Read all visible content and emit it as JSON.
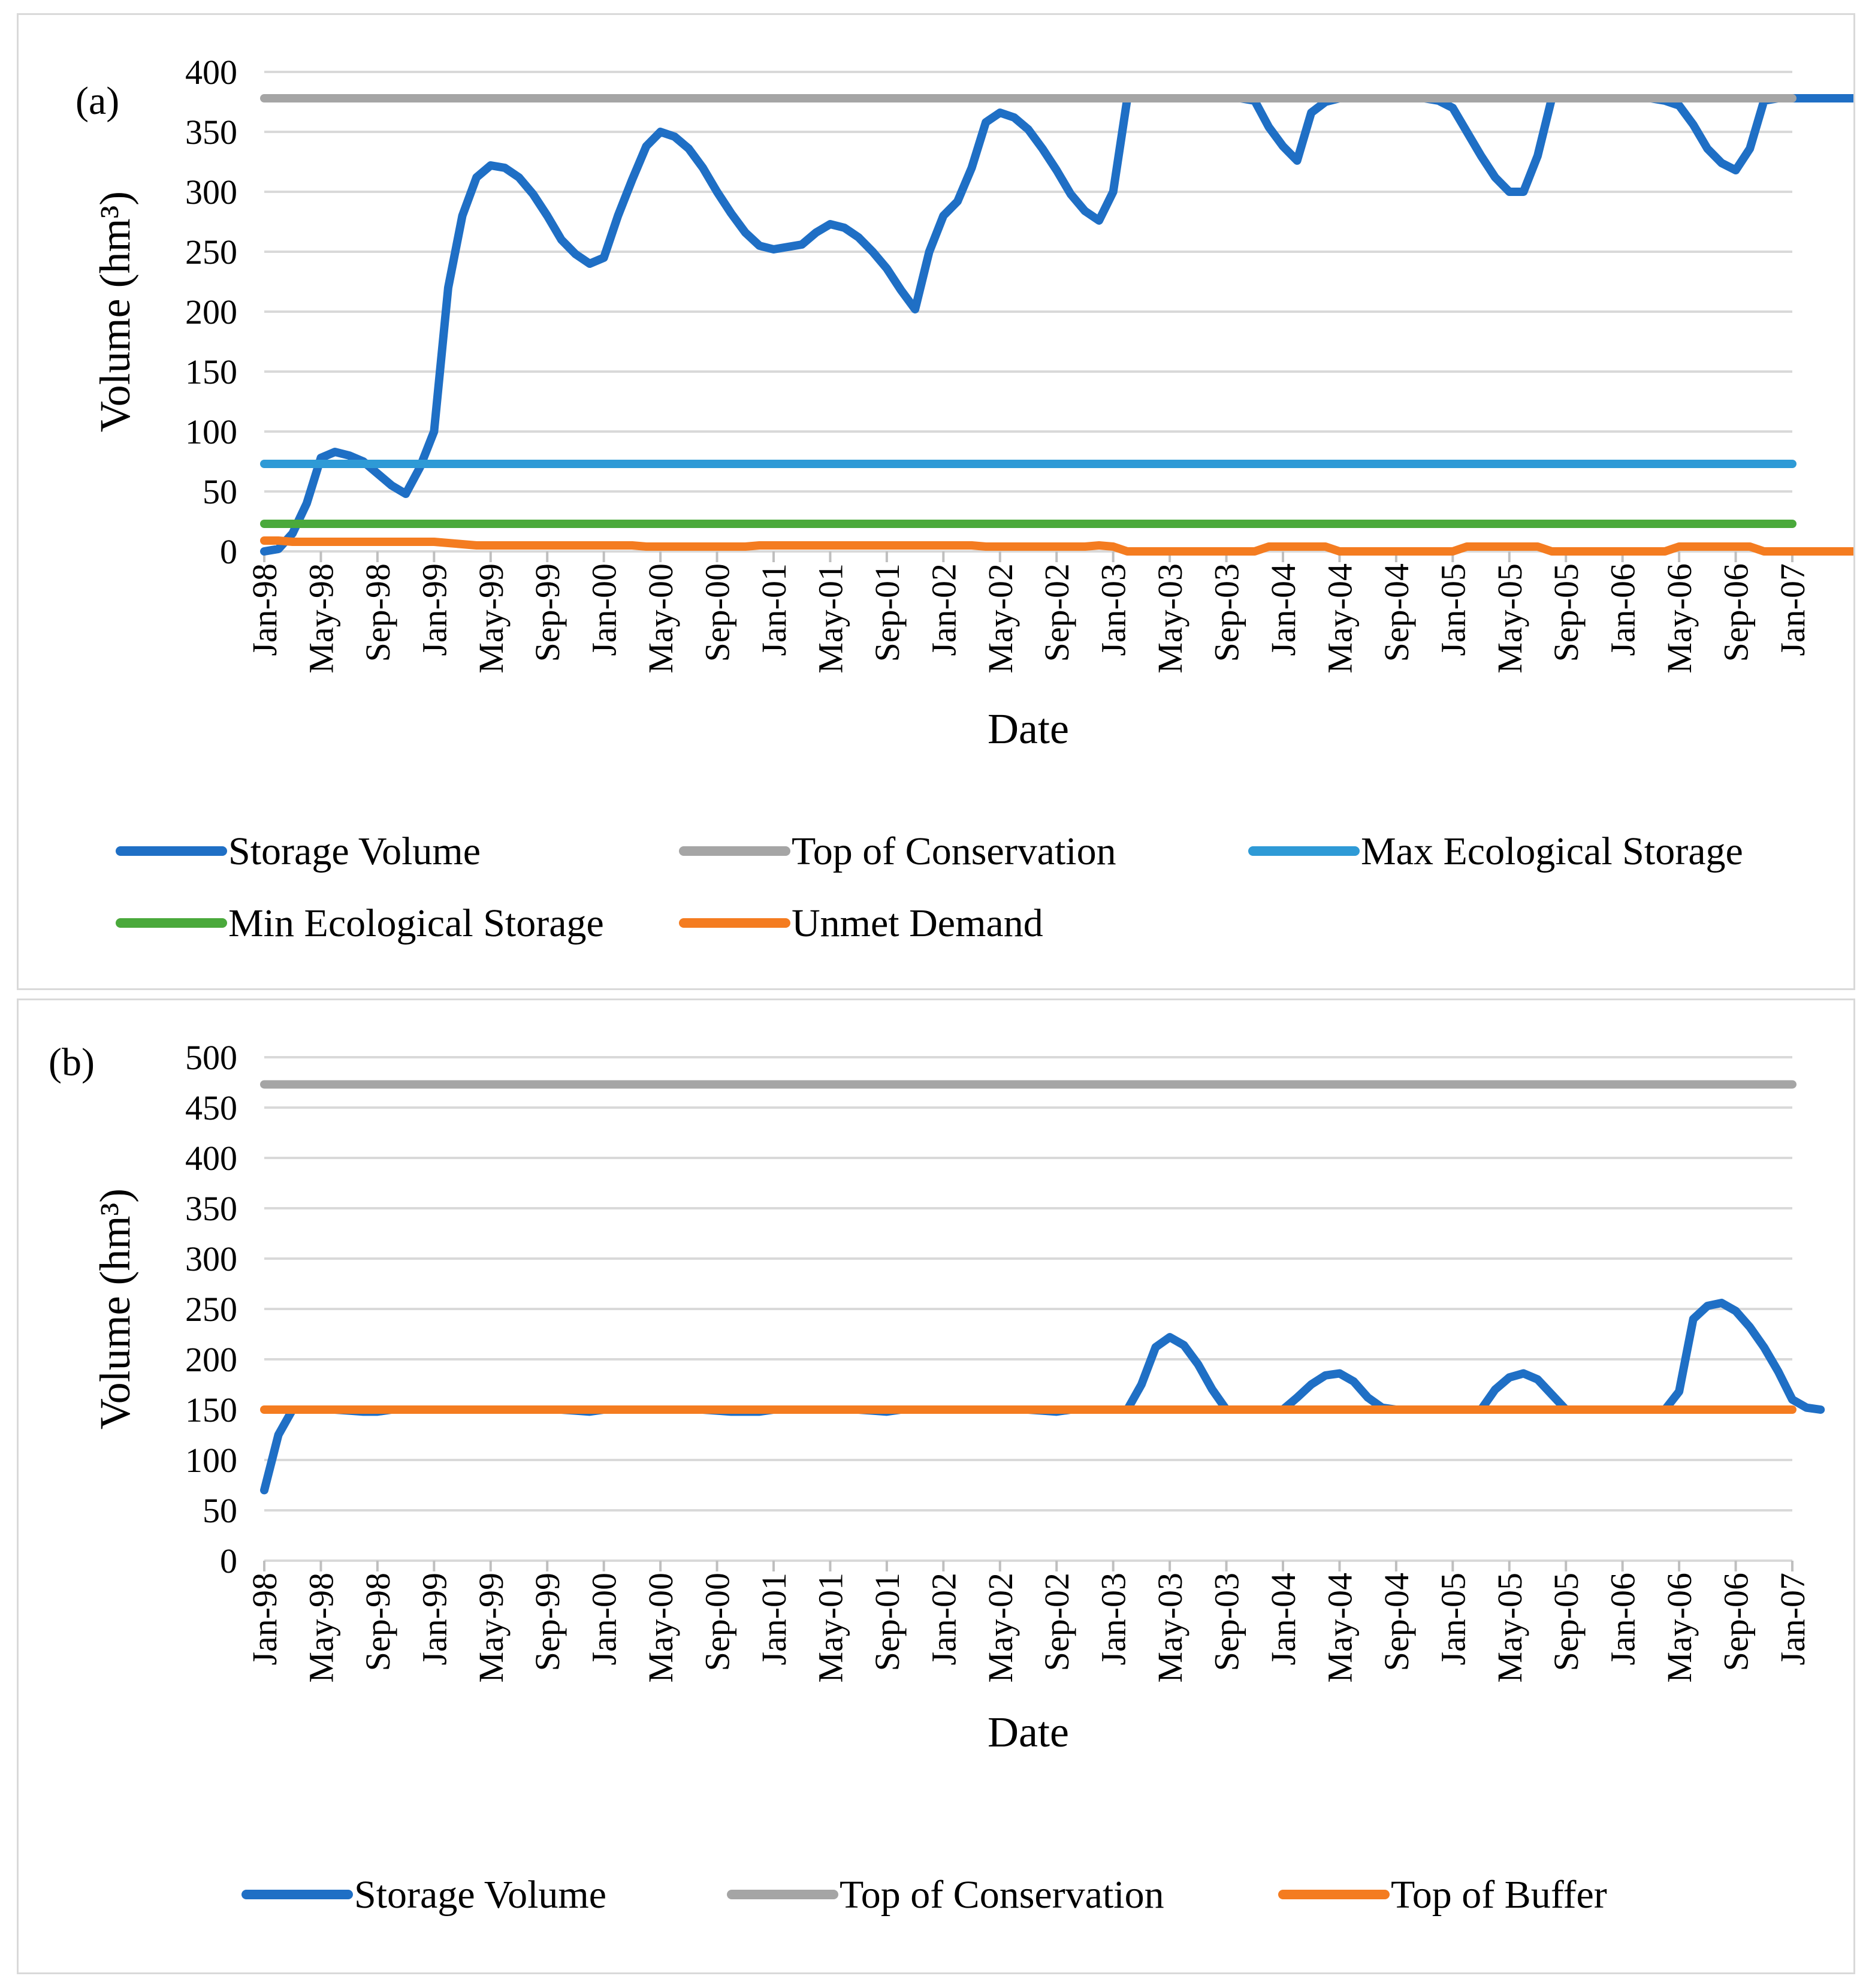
{
  "chart_data": [
    {
      "type": "line",
      "panel_label": "(a)",
      "xlabel": "Date",
      "ylabel": "Volume (hm³)",
      "ylim": [
        0,
        400
      ],
      "yticks": [
        0,
        50,
        100,
        150,
        200,
        250,
        300,
        350,
        400
      ],
      "x_tick_labels": [
        "Jan-98",
        "May-98",
        "Sep-98",
        "Jan-99",
        "May-99",
        "Sep-99",
        "Jan-00",
        "May-00",
        "Sep-00",
        "Jan-01",
        "May-01",
        "Sep-01",
        "Jan-02",
        "May-02",
        "Sep-02",
        "Jan-03",
        "May-03",
        "Sep-03",
        "Jan-04",
        "May-04",
        "Sep-04",
        "Jan-05",
        "May-05",
        "Sep-05",
        "Jan-06",
        "May-06",
        "Sep-06",
        "Jan-07"
      ],
      "grid": true,
      "legend_position": "bottom",
      "series": [
        {
          "name": "Storage Volume",
          "color": "#1f6fc5",
          "values": [
            0,
            2,
            15,
            40,
            78,
            83,
            80,
            75,
            65,
            55,
            48,
            70,
            100,
            220,
            280,
            312,
            322,
            320,
            312,
            298,
            280,
            260,
            248,
            240,
            245,
            280,
            310,
            338,
            350,
            346,
            336,
            320,
            300,
            282,
            266,
            255,
            252,
            254,
            256,
            266,
            273,
            270,
            262,
            250,
            236,
            218,
            202,
            250,
            280,
            292,
            320,
            358,
            366,
            362,
            352,
            336,
            318,
            298,
            284,
            276,
            300,
            378,
            378,
            378,
            378,
            378,
            378,
            378,
            378,
            378,
            376,
            354,
            338,
            326,
            366,
            375,
            378,
            378,
            378,
            378,
            378,
            378,
            378,
            376,
            370,
            350,
            330,
            312,
            300,
            300,
            330,
            378,
            378,
            378,
            378,
            378,
            378,
            378,
            378,
            376,
            372,
            356,
            336,
            324,
            318,
            336,
            376,
            378,
            378,
            378,
            378,
            378,
            378,
            378,
            378,
            378,
            378,
            372,
            364,
            352
          ]
        },
        {
          "name": "Top of Conservation",
          "color": "#a5a5a5",
          "constant": 378
        },
        {
          "name": "Max Ecological Storage",
          "color": "#2e9ad6",
          "constant": 73
        },
        {
          "name": "Min Ecological Storage",
          "color": "#4aa93b",
          "constant": 23
        },
        {
          "name": "Unmet Demand",
          "color": "#f47c20",
          "values": [
            9,
            9,
            8,
            8,
            8,
            8,
            8,
            8,
            8,
            8,
            8,
            8,
            8,
            7,
            6,
            5,
            5,
            5,
            5,
            5,
            5,
            5,
            5,
            5,
            5,
            5,
            5,
            4,
            4,
            4,
            4,
            4,
            4,
            4,
            4,
            5,
            5,
            5,
            5,
            5,
            5,
            5,
            5,
            5,
            5,
            5,
            5,
            5,
            5,
            5,
            5,
            4,
            4,
            4,
            4,
            4,
            4,
            4,
            4,
            5,
            4,
            0,
            0,
            0,
            0,
            0,
            0,
            0,
            0,
            0,
            0,
            4,
            4,
            4,
            4,
            4,
            0,
            0,
            0,
            0,
            0,
            0,
            0,
            0,
            0,
            4,
            4,
            4,
            4,
            4,
            4,
            0,
            0,
            0,
            0,
            0,
            0,
            0,
            0,
            0,
            4,
            4,
            4,
            4,
            4,
            4,
            0,
            0,
            0,
            0,
            0,
            0,
            0,
            0,
            0,
            0,
            0,
            0,
            4,
            4
          ]
        }
      ]
    },
    {
      "type": "line",
      "panel_label": "(b)",
      "xlabel": "Date",
      "ylabel": "Volume (hm³)",
      "ylim": [
        0,
        500
      ],
      "yticks": [
        0,
        50,
        100,
        150,
        200,
        250,
        300,
        350,
        400,
        450,
        500
      ],
      "x_tick_labels": [
        "Jan-98",
        "May-98",
        "Sep-98",
        "Jan-99",
        "May-99",
        "Sep-99",
        "Jan-00",
        "May-00",
        "Sep-00",
        "Jan-01",
        "May-01",
        "Sep-01",
        "Jan-02",
        "May-02",
        "Sep-02",
        "Jan-03",
        "May-03",
        "Sep-03",
        "Jan-04",
        "May-04",
        "Sep-04",
        "Jan-05",
        "May-05",
        "Sep-05",
        "Jan-06",
        "May-06",
        "Sep-06",
        "Jan-07"
      ],
      "grid": true,
      "legend_position": "bottom",
      "series": [
        {
          "name": "Storage Volume",
          "color": "#1f6fc5",
          "values": [
            70,
            125,
            150,
            150,
            150,
            150,
            149,
            148,
            148,
            150,
            150,
            150,
            150,
            150,
            150,
            150,
            150,
            150,
            150,
            150,
            150,
            150,
            149,
            148,
            150,
            150,
            150,
            150,
            150,
            150,
            150,
            150,
            149,
            148,
            148,
            148,
            150,
            150,
            150,
            150,
            150,
            150,
            150,
            149,
            148,
            150,
            150,
            150,
            150,
            150,
            150,
            150,
            150,
            150,
            150,
            149,
            148,
            150,
            150,
            150,
            150,
            150,
            175,
            212,
            222,
            214,
            195,
            170,
            150,
            150,
            150,
            150,
            150,
            162,
            175,
            184,
            186,
            178,
            162,
            152,
            150,
            150,
            150,
            150,
            150,
            150,
            150,
            170,
            182,
            186,
            180,
            165,
            150,
            150,
            150,
            150,
            150,
            150,
            150,
            150,
            168,
            240,
            253,
            256,
            248,
            232,
            212,
            188,
            160,
            152,
            150
          ]
        },
        {
          "name": "Top of Conservation",
          "color": "#a5a5a5",
          "constant": 473
        },
        {
          "name": "Top of Buffer",
          "color": "#f47c20",
          "constant": 150
        }
      ]
    }
  ]
}
